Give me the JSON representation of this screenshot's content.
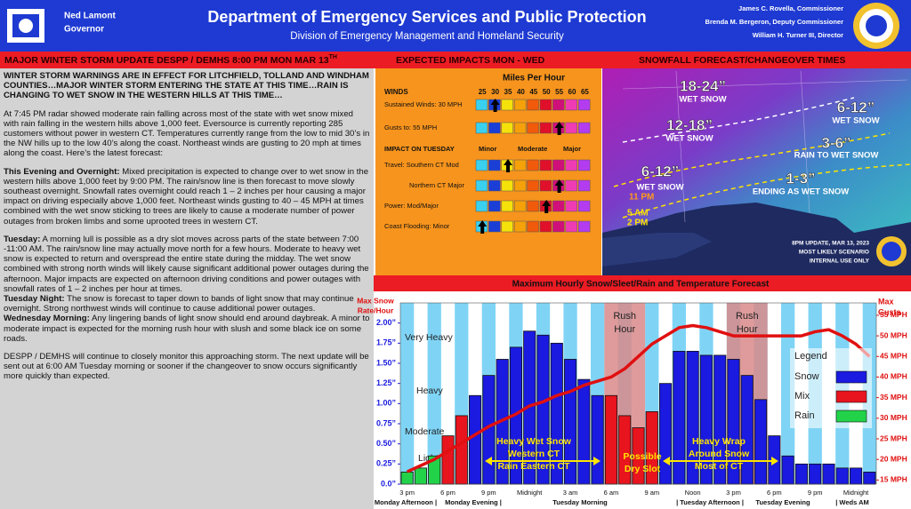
{
  "header": {
    "governor": [
      "Ned Lamont",
      "Governor"
    ],
    "title": "Department of Emergency Services and Public Protection",
    "subtitle": "Division of Emergency Management and Homeland Security",
    "officials": [
      "James C. Rovella, Commissioner",
      "Brenda M. Bergeron, Deputy Commissioner",
      "William H. Turner III, Director"
    ]
  },
  "banner": {
    "update": "MAJOR WINTER STORM UPDATE DESPP / DEMHS 8:00 PM MON MAR 13",
    "update_sup": "TH",
    "impacts": "EXPECTED IMPACTS MON - WED",
    "snowfall": "SNOWFALL FORECAST/CHANGEOVER TIMES"
  },
  "summary": {
    "headline": "WINTER STORM WARNINGS ARE IN EFFECT FOR LITCHFIELD, TOLLAND AND WINDHAM COUNTIES…MAJOR WINTER STORM ENTERING THE STATE AT THIS TIME…RAIN IS CHANGING TO WET SNOW IN THE WESTERN HILLS AT THIS TIME…",
    "paragraphs": [
      {
        "text": "At 7:45 PM radar showed moderate rain falling across most of the state with wet snow mixed with rain falling in the western hills above 1,000 feet.  Eversource is currently reporting 285 customers without power in western CT.  Temperatures currently range from the low to mid 30’s in the NW hills up to the low 40’s along the coast.  Northeast winds are gusting to 20 mph at times along the coast.  Here’s the latest forecast:"
      },
      {
        "lead": "This Evening and Overnight:",
        "text": "Mixed precipitation is expected to change over to wet snow in the western hills above 1,000 feet by 9:00 PM.  The rain/snow line is then forecast to move slowly southeast overnight.  Snowfall rates overnight could reach 1 – 2 inches per hour causing a major impact on driving especially above 1,000 feet.  Northeast winds gusting to 40 – 45 MPH at times combined with the wet snow sticking to trees are likely to cause a moderate number of power outages from broken limbs and some uprooted trees in western CT."
      },
      {
        "lead": "Tuesday:",
        "text": "A morning lull is possible as a dry slot moves across parts of the state between 7:00 -11:00 AM.  The rain/snow line may actually move north for a few hours.  Moderate to heavy wet snow is expected to return and overspread the entire state during the midday.  The wet snow combined with strong north winds will likely cause significant additional power outages during the afternoon.  Major impacts are expected on afternoon driving conditions and power outages with snowfall rates of 1 – 2 inches per hour at times."
      },
      {
        "lead": "Tuesday Night:",
        "text": "The snow is forecast to taper down to bands of light snow that may continue overnight.  Strong northwest winds will continue to cause additional power outages."
      },
      {
        "lead": "Wednesday Morning:",
        "text": "Any lingering bands of light snow should end around daybreak.  A minor to moderate impact is expected for the morning rush hour with slush and some black ice on some roads."
      },
      {
        "text": "DESPP / DEMHS will continue to closely monitor this approaching storm.  The next update will be sent out at 6:00 AM Tuesday morning or sooner if the changeover to snow occurs significantly more quickly than expected."
      }
    ]
  },
  "impacts": {
    "title": "Miles Per Hour",
    "winds_label": "WINDS",
    "scale": [
      25,
      30,
      35,
      40,
      45,
      50,
      55,
      60,
      65
    ],
    "wind_rows": [
      {
        "label": "Sustained Winds: 30 MPH",
        "arrow": 30
      },
      {
        "label": "Gusts to: 55 MPH",
        "arrow": 55
      }
    ],
    "impact_heading": "IMPACT ON TUESDAY",
    "impact_levels": [
      "Minor",
      "Moderate",
      "Major"
    ],
    "impact_rows": [
      {
        "label": "Travel: Southern CT Mod",
        "arrow": 35
      },
      {
        "label": "Northern CT Major",
        "arrow": 55
      },
      {
        "label": "Power: Mod/Major",
        "arrow": 50
      },
      {
        "label": "Coast Flooding: Minor",
        "arrow": 25
      }
    ]
  },
  "map": {
    "zones": [
      {
        "amount": "18-24”",
        "desc": "WET SNOW"
      },
      {
        "amount": "12-18”",
        "desc": "WET SNOW"
      },
      {
        "amount": "6-12”",
        "desc": "WET SNOW"
      },
      {
        "amount": "6-12”",
        "desc": "WET SNOW"
      },
      {
        "amount": "3-6”",
        "desc": "RAIN TO WET SNOW"
      },
      {
        "amount": "1-3”",
        "desc": "ENDING AS WET SNOW"
      }
    ],
    "times": [
      "11 PM",
      "5 AM",
      "2 PM"
    ],
    "note": [
      "8PM UPDATE, MAR 13, 2023",
      "MOST LIKELY SCENARIO",
      "INTERNAL USE ONLY"
    ]
  },
  "chart_data": {
    "type": "bar",
    "title": "Maximum Hourly Snow/Sleet/Rain and Temperature Forecast",
    "y_label": [
      "Max Snow",
      "Rate/Hour"
    ],
    "y2_label": [
      "Max",
      "Gusts"
    ],
    "categories": [
      "3 pm",
      null,
      null,
      "6 pm",
      null,
      null,
      "9 pm",
      null,
      null,
      "Midnight",
      null,
      null,
      "3 am",
      null,
      null,
      "6 am",
      null,
      null,
      "9 am",
      null,
      null,
      "Noon",
      null,
      null,
      "3 pm",
      null,
      null,
      "6 pm",
      null,
      null,
      "9 pm",
      null,
      null,
      "Midnight",
      null
    ],
    "periods": [
      "Monday Afternoon |",
      "Monday Evening |",
      "Tuesday Morning",
      "| Tuesday Afternoon |",
      "Tuesday Evening",
      "| Weds AM"
    ],
    "series": [
      {
        "name": "Snow",
        "color": "#1a1ae0",
        "values": [
          null,
          null,
          null,
          null,
          null,
          1.1,
          1.35,
          1.55,
          1.7,
          1.9,
          1.85,
          1.75,
          1.55,
          1.3,
          1.1,
          null,
          null,
          null,
          null,
          1.25,
          1.65,
          1.65,
          1.6,
          1.6,
          1.55,
          1.35,
          1.05,
          0.6,
          0.35,
          0.25,
          0.25,
          0.25,
          0.2,
          0.2,
          0.15
        ]
      },
      {
        "name": "Mix",
        "color": "#e8141e",
        "values": [
          null,
          null,
          null,
          0.6,
          0.85,
          null,
          null,
          null,
          null,
          null,
          null,
          null,
          null,
          null,
          null,
          1.1,
          0.85,
          0.7,
          0.9,
          null,
          null,
          null,
          null,
          null,
          null,
          null,
          null,
          null,
          null,
          null,
          null,
          null,
          null,
          null,
          null
        ]
      },
      {
        "name": "Rain",
        "color": "#22d34a",
        "values": [
          0.15,
          0.2,
          0.35,
          null,
          null,
          null,
          null,
          null,
          null,
          null,
          null,
          null,
          null,
          null,
          null,
          null,
          null,
          null,
          null,
          null,
          null,
          null,
          null,
          null,
          null,
          null,
          null,
          null,
          null,
          null,
          null,
          null,
          null,
          null,
          null
        ]
      },
      {
        "name": "Max Gusts",
        "type": "line",
        "axis": "y2",
        "color": "#e01010",
        "values": [
          17,
          18.5,
          20,
          22,
          24,
          26,
          28,
          29.5,
          31,
          33,
          34,
          35.5,
          36.5,
          38,
          39,
          40,
          42,
          45,
          48,
          50,
          52,
          52.5,
          52,
          51,
          50,
          50,
          50,
          50,
          50,
          50,
          51,
          51.5,
          50,
          48,
          45
        ]
      }
    ],
    "legend_title": "Legend",
    "ylim": [
      0,
      2.25
    ],
    "yticks": [
      {
        "value": 0,
        "label": "0.0”"
      },
      {
        "value": 0.25,
        "label": "0.25”"
      },
      {
        "value": 0.5,
        "label": "0.50”"
      },
      {
        "value": 0.75,
        "label": "0.75”"
      },
      {
        "value": 1,
        "label": "1.00”"
      },
      {
        "value": 1.25,
        "label": "1.25”"
      },
      {
        "value": 1.5,
        "label": "1.50”"
      },
      {
        "value": 1.75,
        "label": "1.75”"
      },
      {
        "value": 2,
        "label": "2.00”"
      }
    ],
    "y2lim": [
      14,
      58
    ],
    "y2ticks": [
      {
        "value": 15,
        "label": "15 MPH"
      },
      {
        "value": 20,
        "label": "20 MPH"
      },
      {
        "value": 25,
        "label": "25 MPH"
      },
      {
        "value": 30,
        "label": "30 MPH"
      },
      {
        "value": 35,
        "label": "35 MPH"
      },
      {
        "value": 40,
        "label": "40 MPH"
      },
      {
        "value": 45,
        "label": "45 MPH"
      },
      {
        "value": 50,
        "label": "50 MPH"
      },
      {
        "value": 55,
        "label": "55 MPH"
      }
    ],
    "intensity_labels": [
      "Very Heavy",
      "Heavy",
      "Moderate",
      "Light"
    ],
    "rush_hours": [
      [
        "Rush",
        "Hour"
      ],
      [
        "Rush",
        "Hour"
      ]
    ],
    "annotations": [
      [
        "Heavy Wet Snow",
        "Western CT",
        "Rain Eastern CT"
      ],
      [
        "Possible",
        "Dry Slot"
      ],
      [
        "Heavy Wrap",
        "Around Snow",
        "Most of CT"
      ]
    ]
  }
}
